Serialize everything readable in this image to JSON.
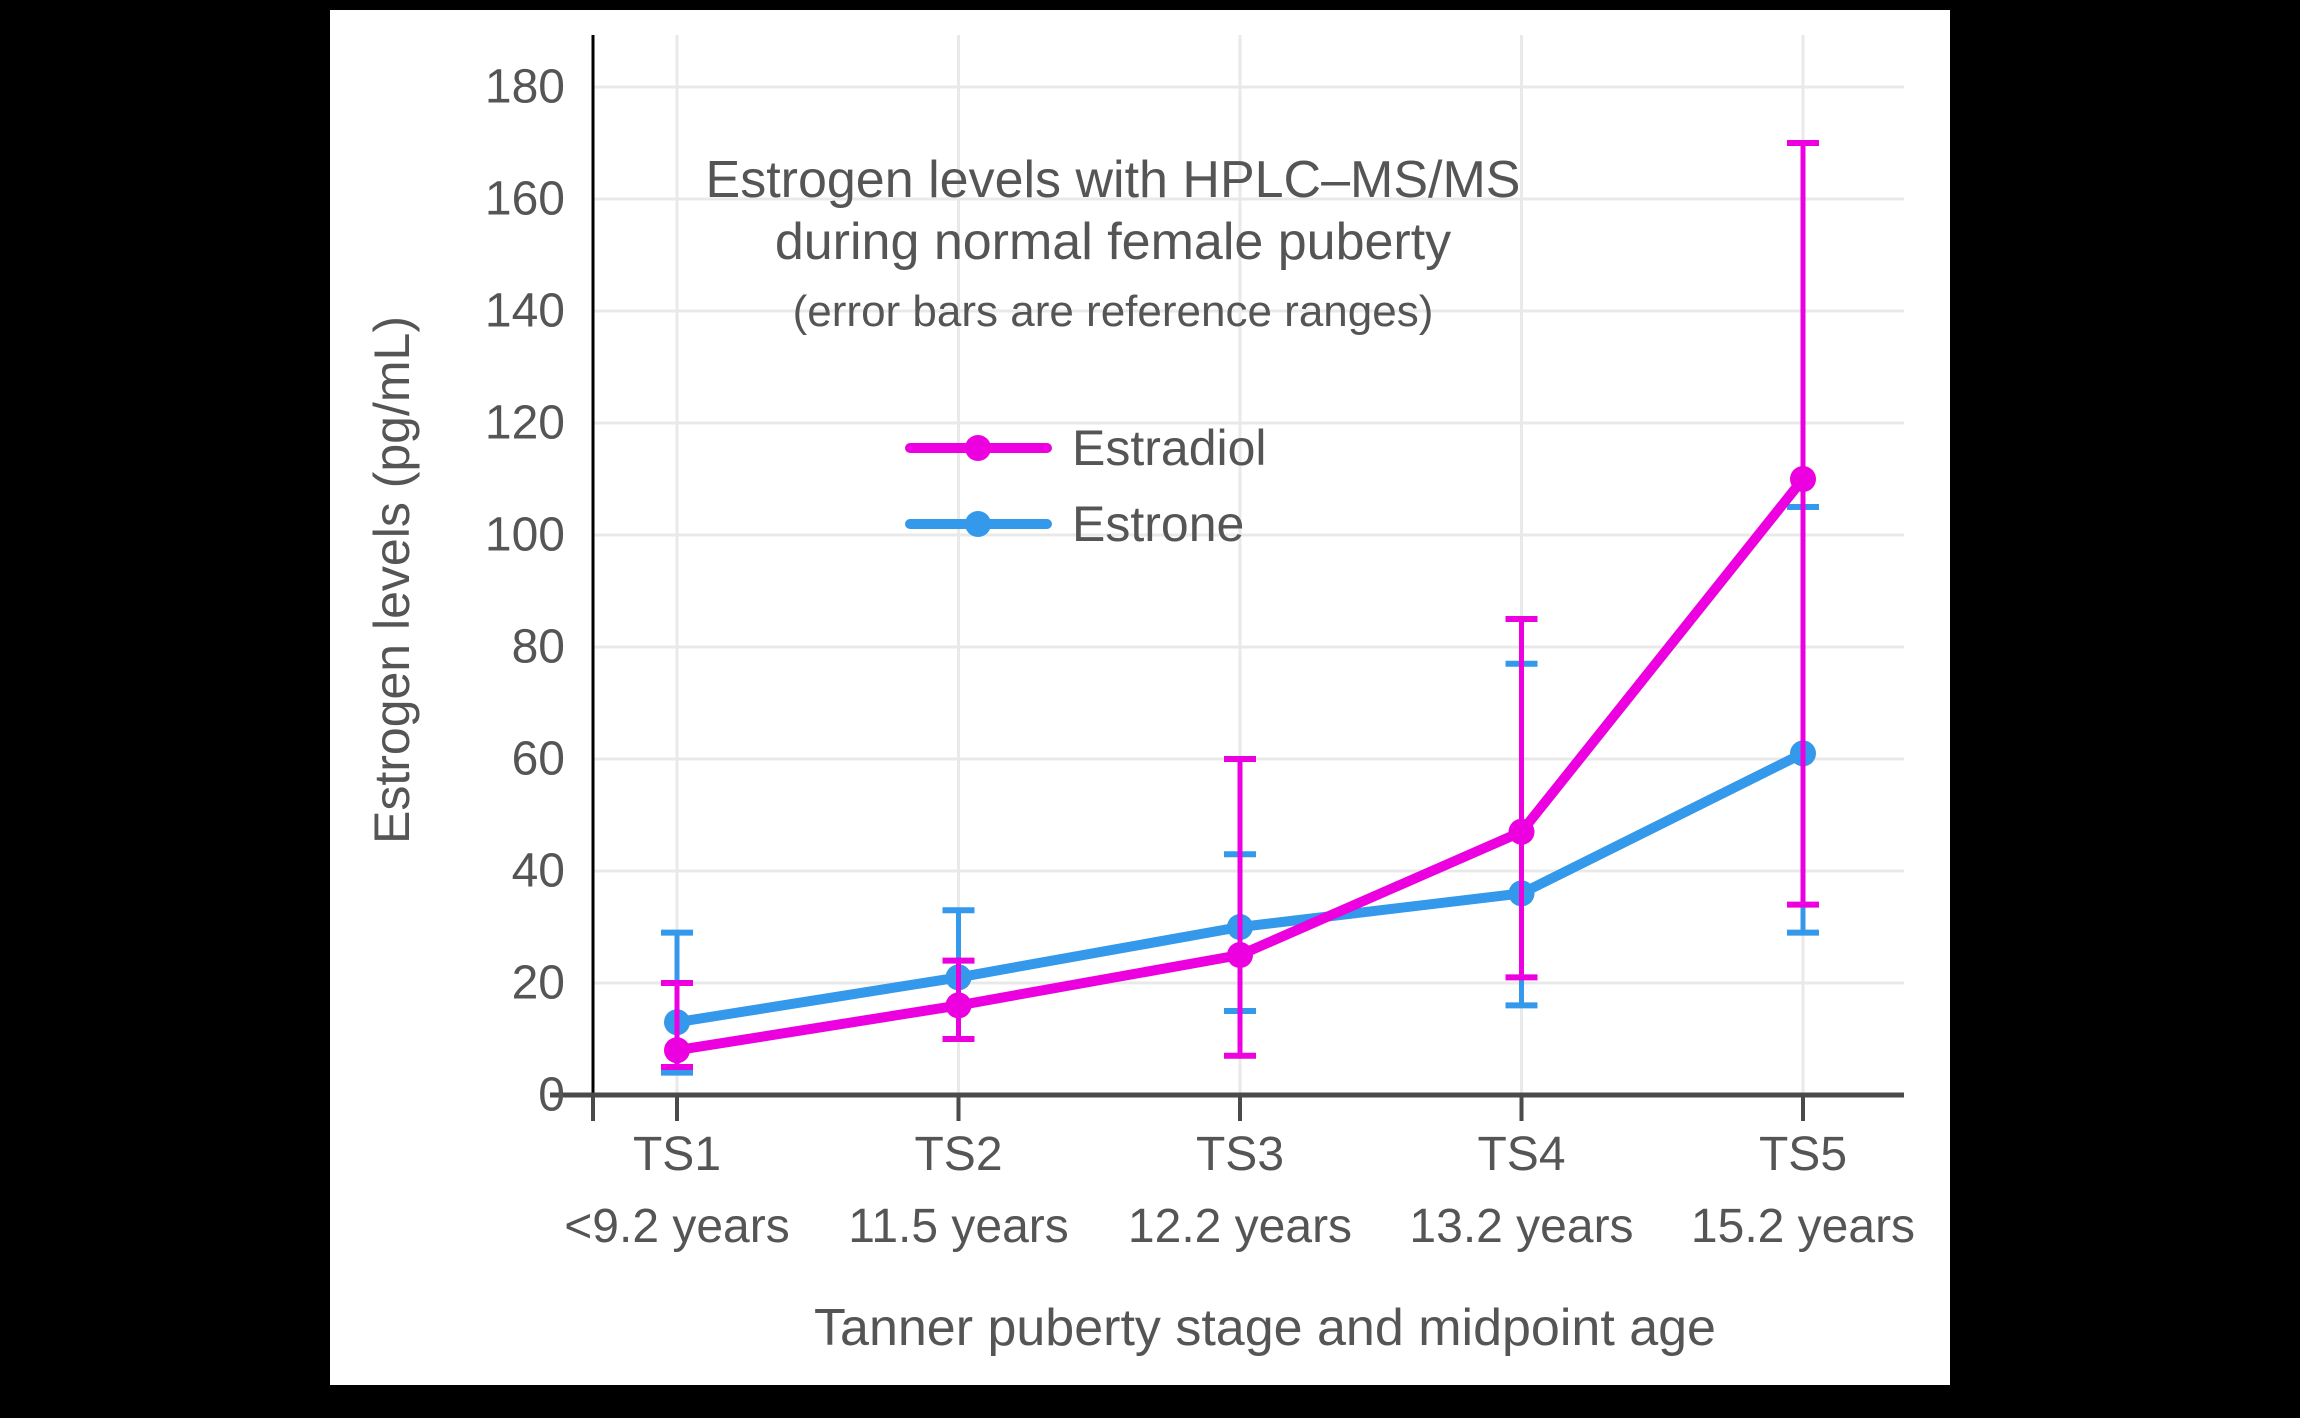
{
  "header": {
    "line1": "Estrogen levels with HPLC–MS/MS",
    "line2": "during normal female puberty",
    "subtitle": "(error bars are reference ranges)"
  },
  "colors": {
    "background": "#000000",
    "panel": "#ffffff",
    "grid": "#e9e9e9",
    "axis": "#4a4a4a",
    "y_axis_line": "#000000",
    "text": "#555555",
    "estradiol": "#ec00e0",
    "estrone": "#3498eb"
  },
  "chart_data": {
    "type": "line",
    "title": "Estrogen levels with HPLC–MS/MS during normal female puberty",
    "subtitle": "(error bars are reference ranges)",
    "xlabel": "Tanner puberty stage and midpoint age",
    "ylabel": "Estrogen levels (pg/mL)",
    "ylim": [
      0,
      189
    ],
    "ytick_step": 20,
    "yticks": [
      0,
      20,
      40,
      60,
      80,
      100,
      120,
      140,
      160,
      180
    ],
    "grid": true,
    "legend_position": "inside-upper-left",
    "error_bars": "reference ranges",
    "categories": [
      "TS1",
      "TS2",
      "TS3",
      "TS4",
      "TS5"
    ],
    "category_ages": [
      "<9.2 years",
      "11.5 years",
      "12.2 years",
      "13.2 years",
      "15.2 years"
    ],
    "series": [
      {
        "name": "Estradiol",
        "color": "#ec00e0",
        "values": [
          8,
          16,
          25,
          47,
          110
        ],
        "error_low": [
          5,
          10,
          7,
          21,
          34
        ],
        "error_high": [
          20,
          24,
          60,
          85,
          170
        ]
      },
      {
        "name": "Estrone",
        "color": "#3498eb",
        "values": [
          13,
          21,
          30,
          36,
          61
        ],
        "error_low": [
          4,
          10,
          15,
          16,
          29
        ],
        "error_high": [
          29,
          33,
          43,
          77,
          105
        ]
      }
    ]
  }
}
